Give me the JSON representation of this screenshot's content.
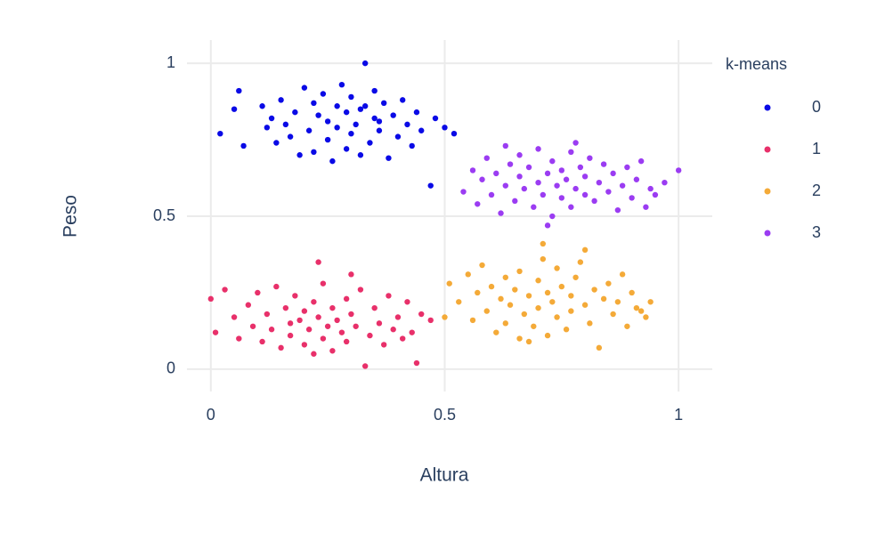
{
  "chart_data": {
    "type": "scatter",
    "xlabel": "Altura",
    "ylabel": "Peso",
    "legend_title": "k-means",
    "legend": "right",
    "grid": true,
    "xlim": [
      -0.051,
      1.072
    ],
    "ylim": [
      -0.073,
      1.076
    ],
    "xticks": [
      0,
      0.5,
      1
    ],
    "yticks": [
      0,
      0.5,
      1
    ],
    "series": [
      {
        "name": "0",
        "color": "#0a0ae6",
        "x": [
          0.02,
          0.05,
          0.06,
          0.07,
          0.11,
          0.12,
          0.13,
          0.14,
          0.15,
          0.16,
          0.17,
          0.18,
          0.19,
          0.2,
          0.21,
          0.22,
          0.22,
          0.23,
          0.24,
          0.25,
          0.25,
          0.26,
          0.27,
          0.27,
          0.28,
          0.29,
          0.29,
          0.3,
          0.3,
          0.31,
          0.32,
          0.32,
          0.33,
          0.34,
          0.35,
          0.35,
          0.36,
          0.37,
          0.38,
          0.39,
          0.4,
          0.41,
          0.42,
          0.43,
          0.44,
          0.45,
          0.47,
          0.48,
          0.5,
          0.52,
          0.33,
          0.36
        ],
        "values": [
          0.77,
          0.85,
          0.91,
          0.73,
          0.86,
          0.79,
          0.82,
          0.74,
          0.88,
          0.8,
          0.76,
          0.84,
          0.7,
          0.92,
          0.78,
          0.87,
          0.71,
          0.83,
          0.9,
          0.75,
          0.81,
          0.68,
          0.86,
          0.79,
          0.93,
          0.72,
          0.84,
          0.77,
          0.89,
          0.8,
          0.7,
          0.85,
          1.0,
          0.74,
          0.82,
          0.91,
          0.78,
          0.87,
          0.69,
          0.83,
          0.76,
          0.88,
          0.8,
          0.73,
          0.84,
          0.78,
          0.6,
          0.82,
          0.79,
          0.77,
          0.86,
          0.81
        ]
      },
      {
        "name": "1",
        "color": "#e8306a",
        "x": [
          0.0,
          0.01,
          0.03,
          0.05,
          0.06,
          0.08,
          0.09,
          0.1,
          0.11,
          0.12,
          0.13,
          0.14,
          0.15,
          0.16,
          0.17,
          0.17,
          0.18,
          0.19,
          0.2,
          0.2,
          0.21,
          0.22,
          0.22,
          0.23,
          0.24,
          0.24,
          0.25,
          0.26,
          0.26,
          0.27,
          0.28,
          0.29,
          0.29,
          0.3,
          0.31,
          0.32,
          0.33,
          0.34,
          0.35,
          0.36,
          0.37,
          0.38,
          0.39,
          0.4,
          0.41,
          0.42,
          0.43,
          0.44,
          0.45,
          0.47,
          0.23,
          0.3
        ],
        "values": [
          0.23,
          0.12,
          0.26,
          0.17,
          0.1,
          0.21,
          0.14,
          0.25,
          0.09,
          0.18,
          0.13,
          0.27,
          0.07,
          0.2,
          0.15,
          0.11,
          0.24,
          0.16,
          0.08,
          0.19,
          0.13,
          0.22,
          0.05,
          0.17,
          0.1,
          0.28,
          0.14,
          0.2,
          0.06,
          0.16,
          0.12,
          0.23,
          0.09,
          0.18,
          0.14,
          0.26,
          0.01,
          0.11,
          0.2,
          0.15,
          0.08,
          0.24,
          0.13,
          0.17,
          0.1,
          0.22,
          0.12,
          0.02,
          0.18,
          0.16,
          0.35,
          0.31
        ]
      },
      {
        "name": "2",
        "color": "#f4aa38",
        "x": [
          0.5,
          0.51,
          0.53,
          0.55,
          0.56,
          0.57,
          0.58,
          0.59,
          0.6,
          0.61,
          0.62,
          0.63,
          0.63,
          0.64,
          0.65,
          0.66,
          0.66,
          0.67,
          0.68,
          0.69,
          0.7,
          0.7,
          0.71,
          0.72,
          0.72,
          0.73,
          0.74,
          0.74,
          0.75,
          0.76,
          0.77,
          0.77,
          0.78,
          0.79,
          0.8,
          0.81,
          0.82,
          0.83,
          0.84,
          0.85,
          0.86,
          0.87,
          0.88,
          0.89,
          0.9,
          0.91,
          0.92,
          0.93,
          0.94,
          0.71,
          0.68,
          0.8
        ],
        "values": [
          0.17,
          0.28,
          0.22,
          0.31,
          0.16,
          0.25,
          0.34,
          0.19,
          0.27,
          0.12,
          0.23,
          0.3,
          0.15,
          0.21,
          0.26,
          0.1,
          0.32,
          0.18,
          0.24,
          0.14,
          0.29,
          0.2,
          0.36,
          0.25,
          0.11,
          0.22,
          0.33,
          0.17,
          0.27,
          0.13,
          0.24,
          0.19,
          0.3,
          0.35,
          0.21,
          0.15,
          0.26,
          0.07,
          0.23,
          0.28,
          0.18,
          0.22,
          0.31,
          0.14,
          0.25,
          0.2,
          0.19,
          0.17,
          0.22,
          0.41,
          0.09,
          0.39
        ]
      },
      {
        "name": "3",
        "color": "#9b3cf2",
        "x": [
          0.54,
          0.56,
          0.57,
          0.58,
          0.59,
          0.6,
          0.61,
          0.62,
          0.63,
          0.64,
          0.65,
          0.66,
          0.66,
          0.67,
          0.68,
          0.69,
          0.7,
          0.7,
          0.71,
          0.72,
          0.73,
          0.73,
          0.74,
          0.75,
          0.75,
          0.76,
          0.77,
          0.77,
          0.78,
          0.79,
          0.8,
          0.8,
          0.81,
          0.82,
          0.83,
          0.84,
          0.85,
          0.86,
          0.87,
          0.88,
          0.89,
          0.9,
          0.91,
          0.92,
          0.93,
          0.94,
          0.95,
          0.97,
          1.0,
          0.63,
          0.72,
          0.78
        ],
        "values": [
          0.58,
          0.65,
          0.54,
          0.62,
          0.69,
          0.57,
          0.64,
          0.51,
          0.6,
          0.67,
          0.55,
          0.63,
          0.7,
          0.59,
          0.66,
          0.53,
          0.61,
          0.72,
          0.57,
          0.64,
          0.5,
          0.68,
          0.6,
          0.56,
          0.65,
          0.62,
          0.71,
          0.53,
          0.59,
          0.66,
          0.57,
          0.63,
          0.69,
          0.55,
          0.61,
          0.67,
          0.58,
          0.64,
          0.52,
          0.6,
          0.66,
          0.56,
          0.62,
          0.68,
          0.53,
          0.59,
          0.57,
          0.61,
          0.65,
          0.73,
          0.47,
          0.74
        ]
      }
    ]
  }
}
